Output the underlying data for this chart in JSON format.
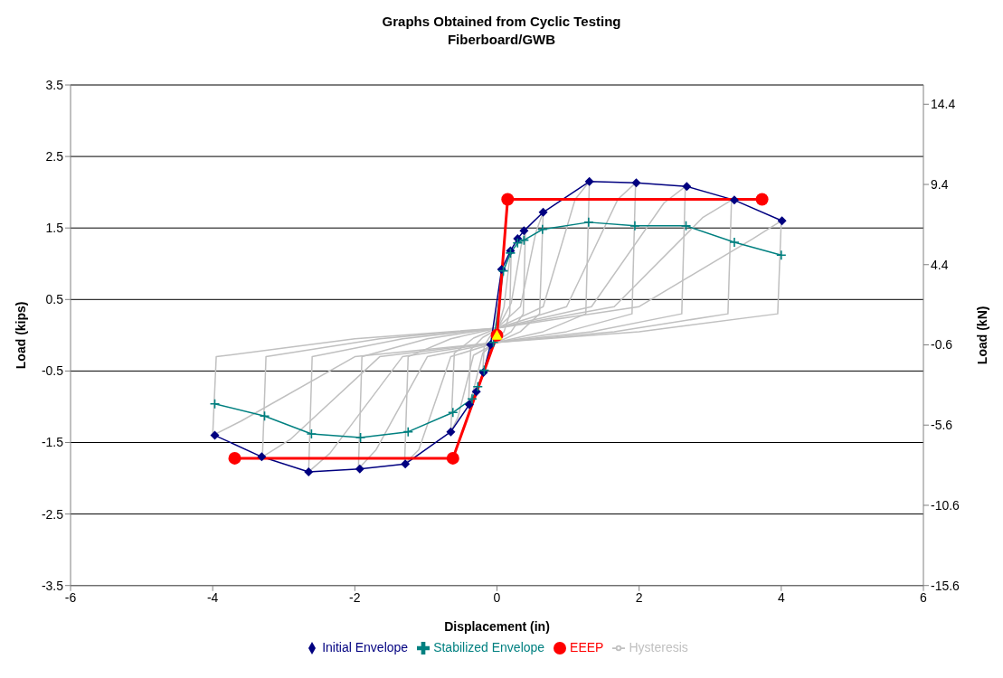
{
  "chart_data": {
    "type": "line",
    "title": "Graphs Obtained from Cyclic Testing",
    "subtitle": "Fiberboard/GWB",
    "xlabel": "Displacement (in)",
    "ylabel": "Load (kips)",
    "y2label": "Load (kN)",
    "xlim": [
      -6,
      6
    ],
    "xticks": [
      -6,
      -4,
      -2,
      0,
      2,
      4,
      6
    ],
    "ylim": [
      -3.5,
      3.5
    ],
    "yticks": [
      -3.5,
      -2.5,
      -1.5,
      -0.5,
      0.5,
      1.5,
      2.5,
      3.5
    ],
    "y2lim": [
      -15.6,
      15.6
    ],
    "y2ticks": [
      -15.6,
      -10.6,
      -5.6,
      -0.6,
      4.4,
      9.4,
      14.4
    ],
    "grid": "y",
    "legend": "bottom",
    "series": [
      {
        "name": "Initial Envelope",
        "color": "#000080",
        "marker": "diamond",
        "x": [
          -3.97,
          -3.31,
          -2.65,
          -1.93,
          -1.29,
          -0.65,
          -0.39,
          -0.29,
          -0.19,
          -0.09,
          0.065,
          0.19,
          0.29,
          0.38,
          0.65,
          1.3,
          1.96,
          2.67,
          3.34,
          4.01
        ],
        "values": [
          -1.4,
          -1.7,
          -1.91,
          -1.87,
          -1.8,
          -1.35,
          -0.97,
          -0.79,
          -0.52,
          -0.13,
          0.92,
          1.18,
          1.35,
          1.46,
          1.72,
          2.15,
          2.13,
          2.08,
          1.89,
          1.6
        ]
      },
      {
        "name": "Stabilized Envelope",
        "color": "#008080",
        "marker": "cross",
        "x": [
          -3.97,
          -3.27,
          -2.61,
          -1.92,
          -1.25,
          -0.62,
          -0.35,
          -0.27,
          -0.18,
          -0.05,
          0.09,
          0.19,
          0.29,
          0.38,
          0.64,
          1.29,
          1.94,
          2.66,
          3.34,
          4.0
        ],
        "values": [
          -0.96,
          -1.13,
          -1.38,
          -1.43,
          -1.35,
          -1.08,
          -0.89,
          -0.72,
          -0.49,
          -0.1,
          0.9,
          1.15,
          1.29,
          1.33,
          1.48,
          1.58,
          1.53,
          1.53,
          1.3,
          1.12
        ]
      },
      {
        "name": "EEEP",
        "color": "#ff0000",
        "marker": "circle",
        "x": [
          -3.69,
          -0.62,
          0,
          0.15,
          3.73
        ],
        "values": [
          -1.72,
          -1.72,
          0,
          1.9,
          1.9
        ]
      },
      {
        "name": "Hysteresis",
        "color": "#c0c0c0",
        "marker": "none",
        "x": [
          -0.2,
          -0.18,
          -0.1,
          0,
          0.1,
          0.17,
          0.2
        ],
        "values": [
          -0.52,
          -0.15,
          -0.02,
          0.05,
          0.4,
          1.0,
          1.18
        ]
      },
      {
        "color": "#c0c0c0",
        "marker": "none",
        "x": [
          0.2,
          0.18,
          0.1,
          0,
          -0.1,
          -0.17,
          -0.2
        ],
        "values": [
          1.18,
          0.3,
          0.05,
          -0.05,
          -0.2,
          -0.45,
          -0.52
        ]
      },
      {
        "color": "#c0c0c0",
        "marker": "none",
        "x": [
          -0.4,
          -0.37,
          -0.2,
          0,
          0.2,
          0.34,
          0.4
        ],
        "values": [
          -0.97,
          -0.2,
          -0.03,
          0.08,
          0.45,
          1.25,
          1.46
        ]
      },
      {
        "color": "#c0c0c0",
        "marker": "none",
        "x": [
          0.4,
          0.37,
          0.2,
          0,
          -0.2,
          -0.34,
          -0.4
        ],
        "values": [
          1.46,
          0.3,
          0.05,
          -0.08,
          -0.25,
          -0.8,
          -0.97
        ]
      },
      {
        "color": "#c0c0c0",
        "marker": "none",
        "x": [
          -0.65,
          -0.6,
          -0.33,
          0,
          0.33,
          0.55,
          0.65
        ],
        "values": [
          -1.35,
          -0.25,
          -0.04,
          0.1,
          0.4,
          1.45,
          1.72
        ]
      },
      {
        "color": "#c0c0c0",
        "marker": "none",
        "x": [
          0.65,
          0.6,
          0.33,
          0,
          -0.33,
          -0.55,
          -0.65
        ],
        "values": [
          1.72,
          0.3,
          0.05,
          -0.1,
          -0.28,
          -1.15,
          -1.35
        ]
      },
      {
        "color": "#c0c0c0",
        "marker": "none",
        "x": [
          -1.3,
          -1.25,
          -0.65,
          0,
          0.65,
          1.1,
          1.3
        ],
        "values": [
          -1.8,
          -0.3,
          -0.05,
          0.1,
          0.4,
          1.9,
          2.15
        ]
      },
      {
        "color": "#c0c0c0",
        "marker": "none",
        "x": [
          1.3,
          1.25,
          0.65,
          0,
          -0.65,
          -1.1,
          -1.3
        ],
        "values": [
          2.15,
          0.3,
          0.05,
          -0.1,
          -0.3,
          -1.6,
          -1.8
        ]
      },
      {
        "color": "#c0c0c0",
        "marker": "none",
        "x": [
          -1.95,
          -1.9,
          -0.98,
          0,
          0.98,
          1.7,
          1.95
        ],
        "values": [
          -1.87,
          -0.3,
          -0.05,
          0.1,
          0.4,
          1.9,
          2.13
        ]
      },
      {
        "color": "#c0c0c0",
        "marker": "none",
        "x": [
          1.95,
          1.9,
          0.98,
          0,
          -0.98,
          -1.7,
          -1.95
        ],
        "values": [
          2.13,
          0.3,
          0.05,
          -0.1,
          -0.3,
          -1.6,
          -1.87
        ]
      },
      {
        "color": "#c0c0c0",
        "marker": "none",
        "x": [
          -2.65,
          -2.6,
          -1.33,
          0,
          1.33,
          2.35,
          2.65
        ],
        "values": [
          -1.91,
          -0.3,
          -0.05,
          0.1,
          0.4,
          1.85,
          2.08
        ]
      },
      {
        "color": "#c0c0c0",
        "marker": "none",
        "x": [
          2.65,
          2.6,
          1.33,
          0,
          -1.33,
          -2.35,
          -2.65
        ],
        "values": [
          2.08,
          0.3,
          0.05,
          -0.1,
          -0.3,
          -1.65,
          -1.91
        ]
      },
      {
        "color": "#c0c0c0",
        "marker": "none",
        "x": [
          -3.3,
          -3.25,
          -1.65,
          0,
          1.65,
          2.9,
          3.3
        ],
        "values": [
          -1.7,
          -0.3,
          -0.05,
          0.1,
          0.4,
          1.65,
          1.89
        ]
      },
      {
        "color": "#c0c0c0",
        "marker": "none",
        "x": [
          3.3,
          3.25,
          1.65,
          0,
          -1.65,
          -2.9,
          -3.3
        ],
        "values": [
          1.89,
          0.3,
          0.05,
          -0.1,
          -0.3,
          -1.45,
          -1.7
        ]
      },
      {
        "color": "#c0c0c0",
        "marker": "none",
        "x": [
          -4,
          -3.95,
          -2,
          0,
          2,
          3.6,
          4
        ],
        "values": [
          -1.4,
          -0.3,
          -0.05,
          0.1,
          0.4,
          1.35,
          1.6
        ]
      },
      {
        "color": "#c0c0c0",
        "marker": "none",
        "x": [
          4,
          3.95,
          2,
          0,
          -2,
          -3.6,
          -4
        ],
        "values": [
          1.6,
          0.3,
          0.05,
          -0.1,
          -0.3,
          -1.2,
          -1.4
        ]
      },
      {
        "type": "scatter",
        "color": "#ffff00",
        "marker": "triangle",
        "x": [
          0
        ],
        "values": [
          0
        ]
      }
    ]
  }
}
